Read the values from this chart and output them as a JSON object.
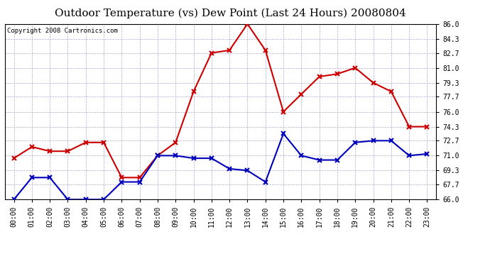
{
  "title": "Outdoor Temperature (vs) Dew Point (Last 24 Hours) 20080804",
  "copyright": "Copyright 2008 Cartronics.com",
  "hours": [
    "00:00",
    "01:00",
    "02:00",
    "03:00",
    "04:00",
    "05:00",
    "06:00",
    "07:00",
    "08:00",
    "09:00",
    "10:00",
    "11:00",
    "12:00",
    "13:00",
    "14:00",
    "15:00",
    "16:00",
    "17:00",
    "18:00",
    "19:00",
    "20:00",
    "21:00",
    "22:00",
    "23:00"
  ],
  "temp": [
    66.0,
    68.5,
    68.5,
    66.0,
    66.0,
    66.0,
    68.0,
    68.0,
    71.0,
    71.0,
    70.7,
    70.7,
    69.5,
    69.3,
    68.0,
    73.5,
    71.0,
    70.5,
    70.5,
    72.5,
    72.7,
    72.7,
    71.0,
    71.2
  ],
  "dewpoint": [
    70.7,
    72.0,
    71.5,
    71.5,
    72.5,
    72.5,
    68.5,
    68.5,
    71.0,
    72.5,
    78.3,
    82.7,
    83.0,
    86.0,
    83.0,
    76.0,
    78.0,
    80.0,
    80.3,
    81.0,
    79.3,
    78.3,
    74.3,
    74.3
  ],
  "temp_color": "#0000bb",
  "dewpoint_color": "#cc0000",
  "bg_color": "#ffffff",
  "plot_bg_color": "#ffffff",
  "grid_color": "#aaaacc",
  "ylim_min": 66.0,
  "ylim_max": 86.0,
  "yticks": [
    66.0,
    67.7,
    69.3,
    71.0,
    72.7,
    74.3,
    76.0,
    77.7,
    79.3,
    81.0,
    82.7,
    84.3,
    86.0
  ],
  "title_fontsize": 11,
  "copyright_fontsize": 6.5,
  "tick_fontsize": 7,
  "marker_size": 4,
  "line_width": 1.5
}
